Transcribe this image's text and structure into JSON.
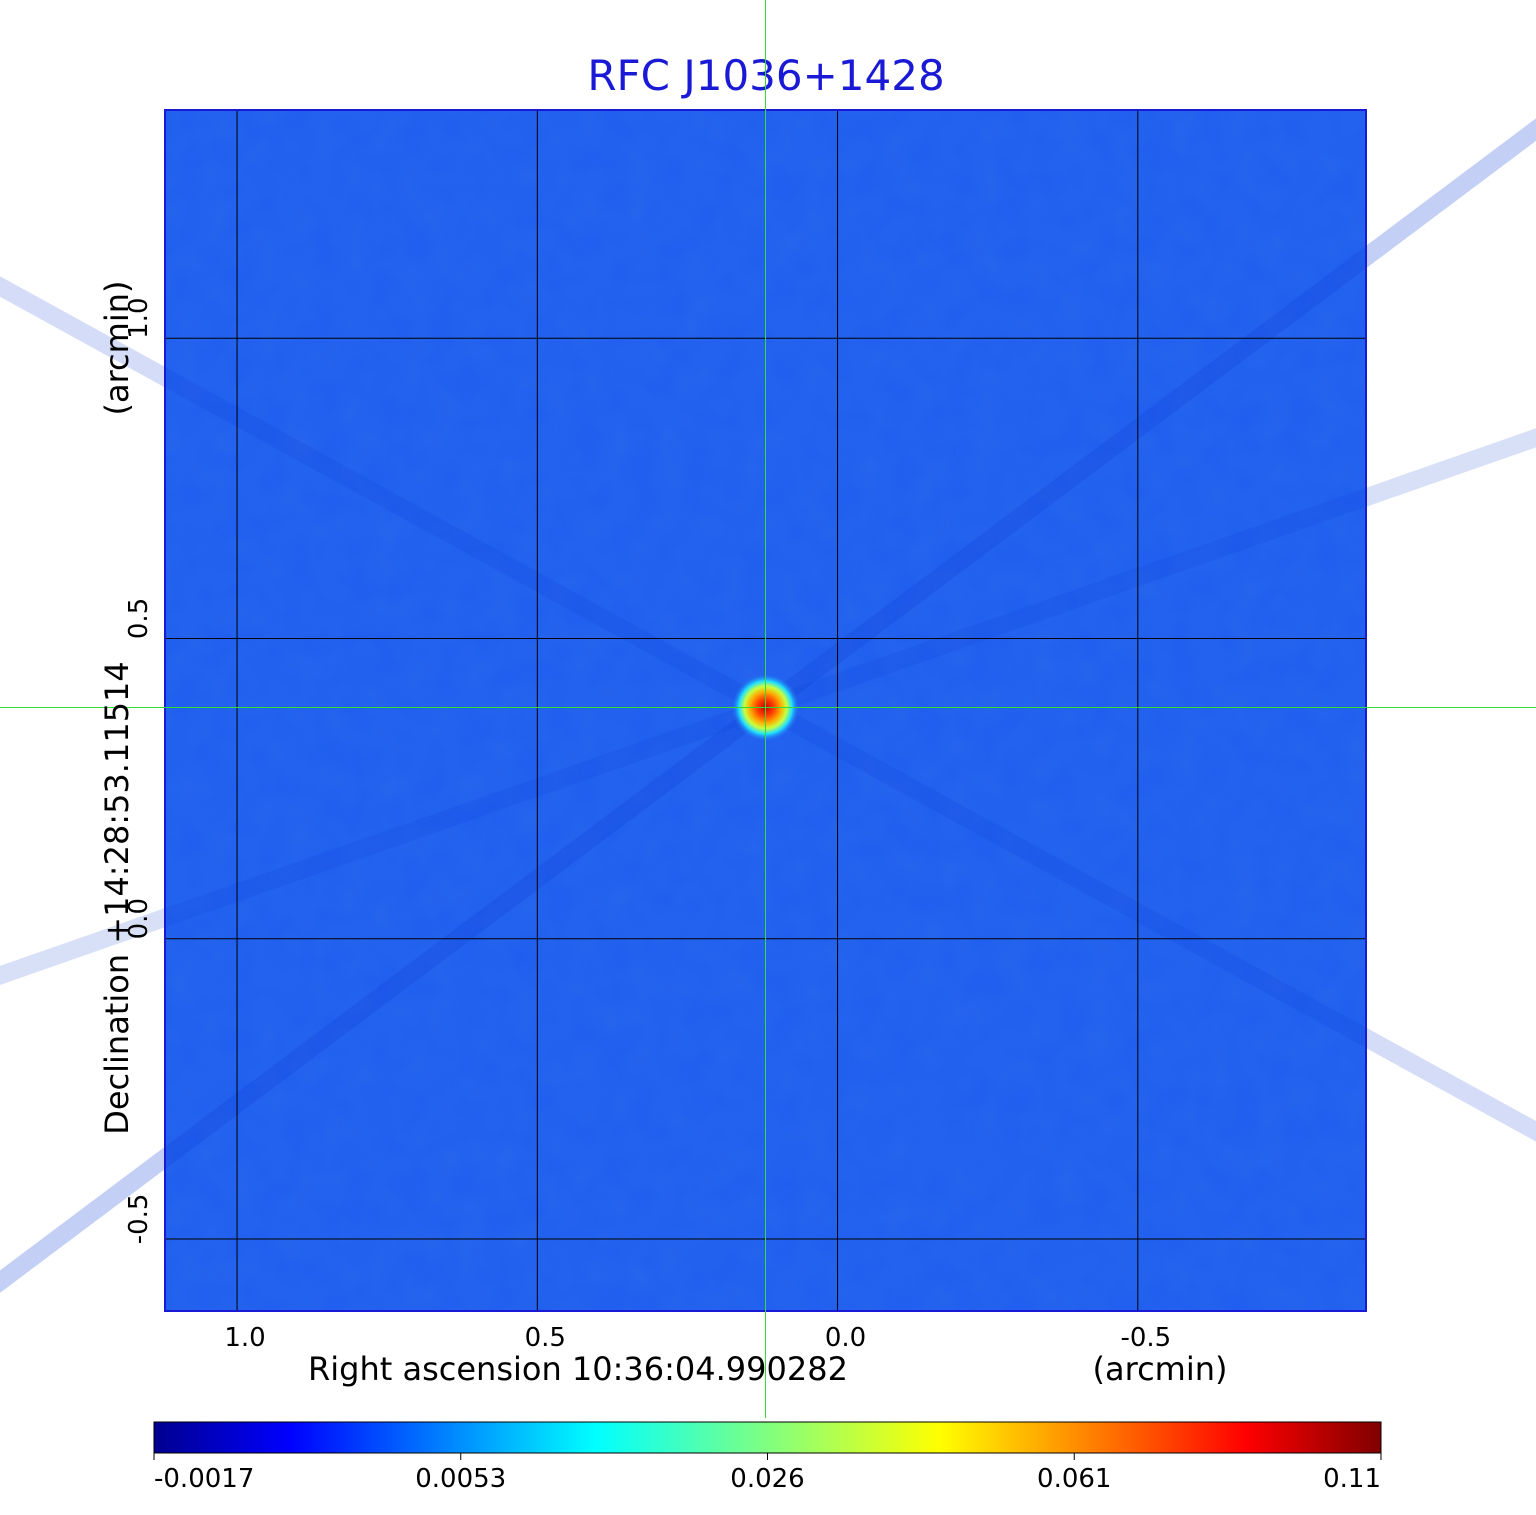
{
  "chart_data": {
    "type": "heatmap",
    "title": "RFC J1036+1428",
    "title_color": "#1a1ad6",
    "xlabel": "Right ascension  10:36:04.990282",
    "xlabel_unit": "(arcmin)",
    "ylabel": "Declination  +14:28:53.11514",
    "ylabel_unit": "(arcmin)",
    "x_ticks": [
      "1.0",
      "0.5",
      "0.0",
      "-0.5"
    ],
    "x_tick_values": [
      1.0,
      0.5,
      0.0,
      -0.5
    ],
    "y_ticks": [
      "1.0",
      "0.5",
      "0.0",
      "-0.5"
    ],
    "y_tick_values": [
      1.0,
      0.5,
      0.0,
      -0.5
    ],
    "xlim": [
      1.12,
      -0.88
    ],
    "ylim": [
      -0.62,
      1.38
    ],
    "grid": true,
    "crosshair": {
      "x": 0.12,
      "y": 0.385,
      "color": "#33dd33"
    },
    "source_peak": {
      "x": 0.12,
      "y": 0.385,
      "value": 0.11
    },
    "colorbar": {
      "ticks": [
        "-0.0017",
        "0.0053",
        "0.026",
        "0.061",
        "0.11"
      ],
      "tick_values": [
        -0.0017,
        0.0053,
        0.026,
        0.061,
        0.11
      ],
      "colormap": "jet",
      "placement": "bottom"
    },
    "background_color": "#1f5ef0"
  }
}
